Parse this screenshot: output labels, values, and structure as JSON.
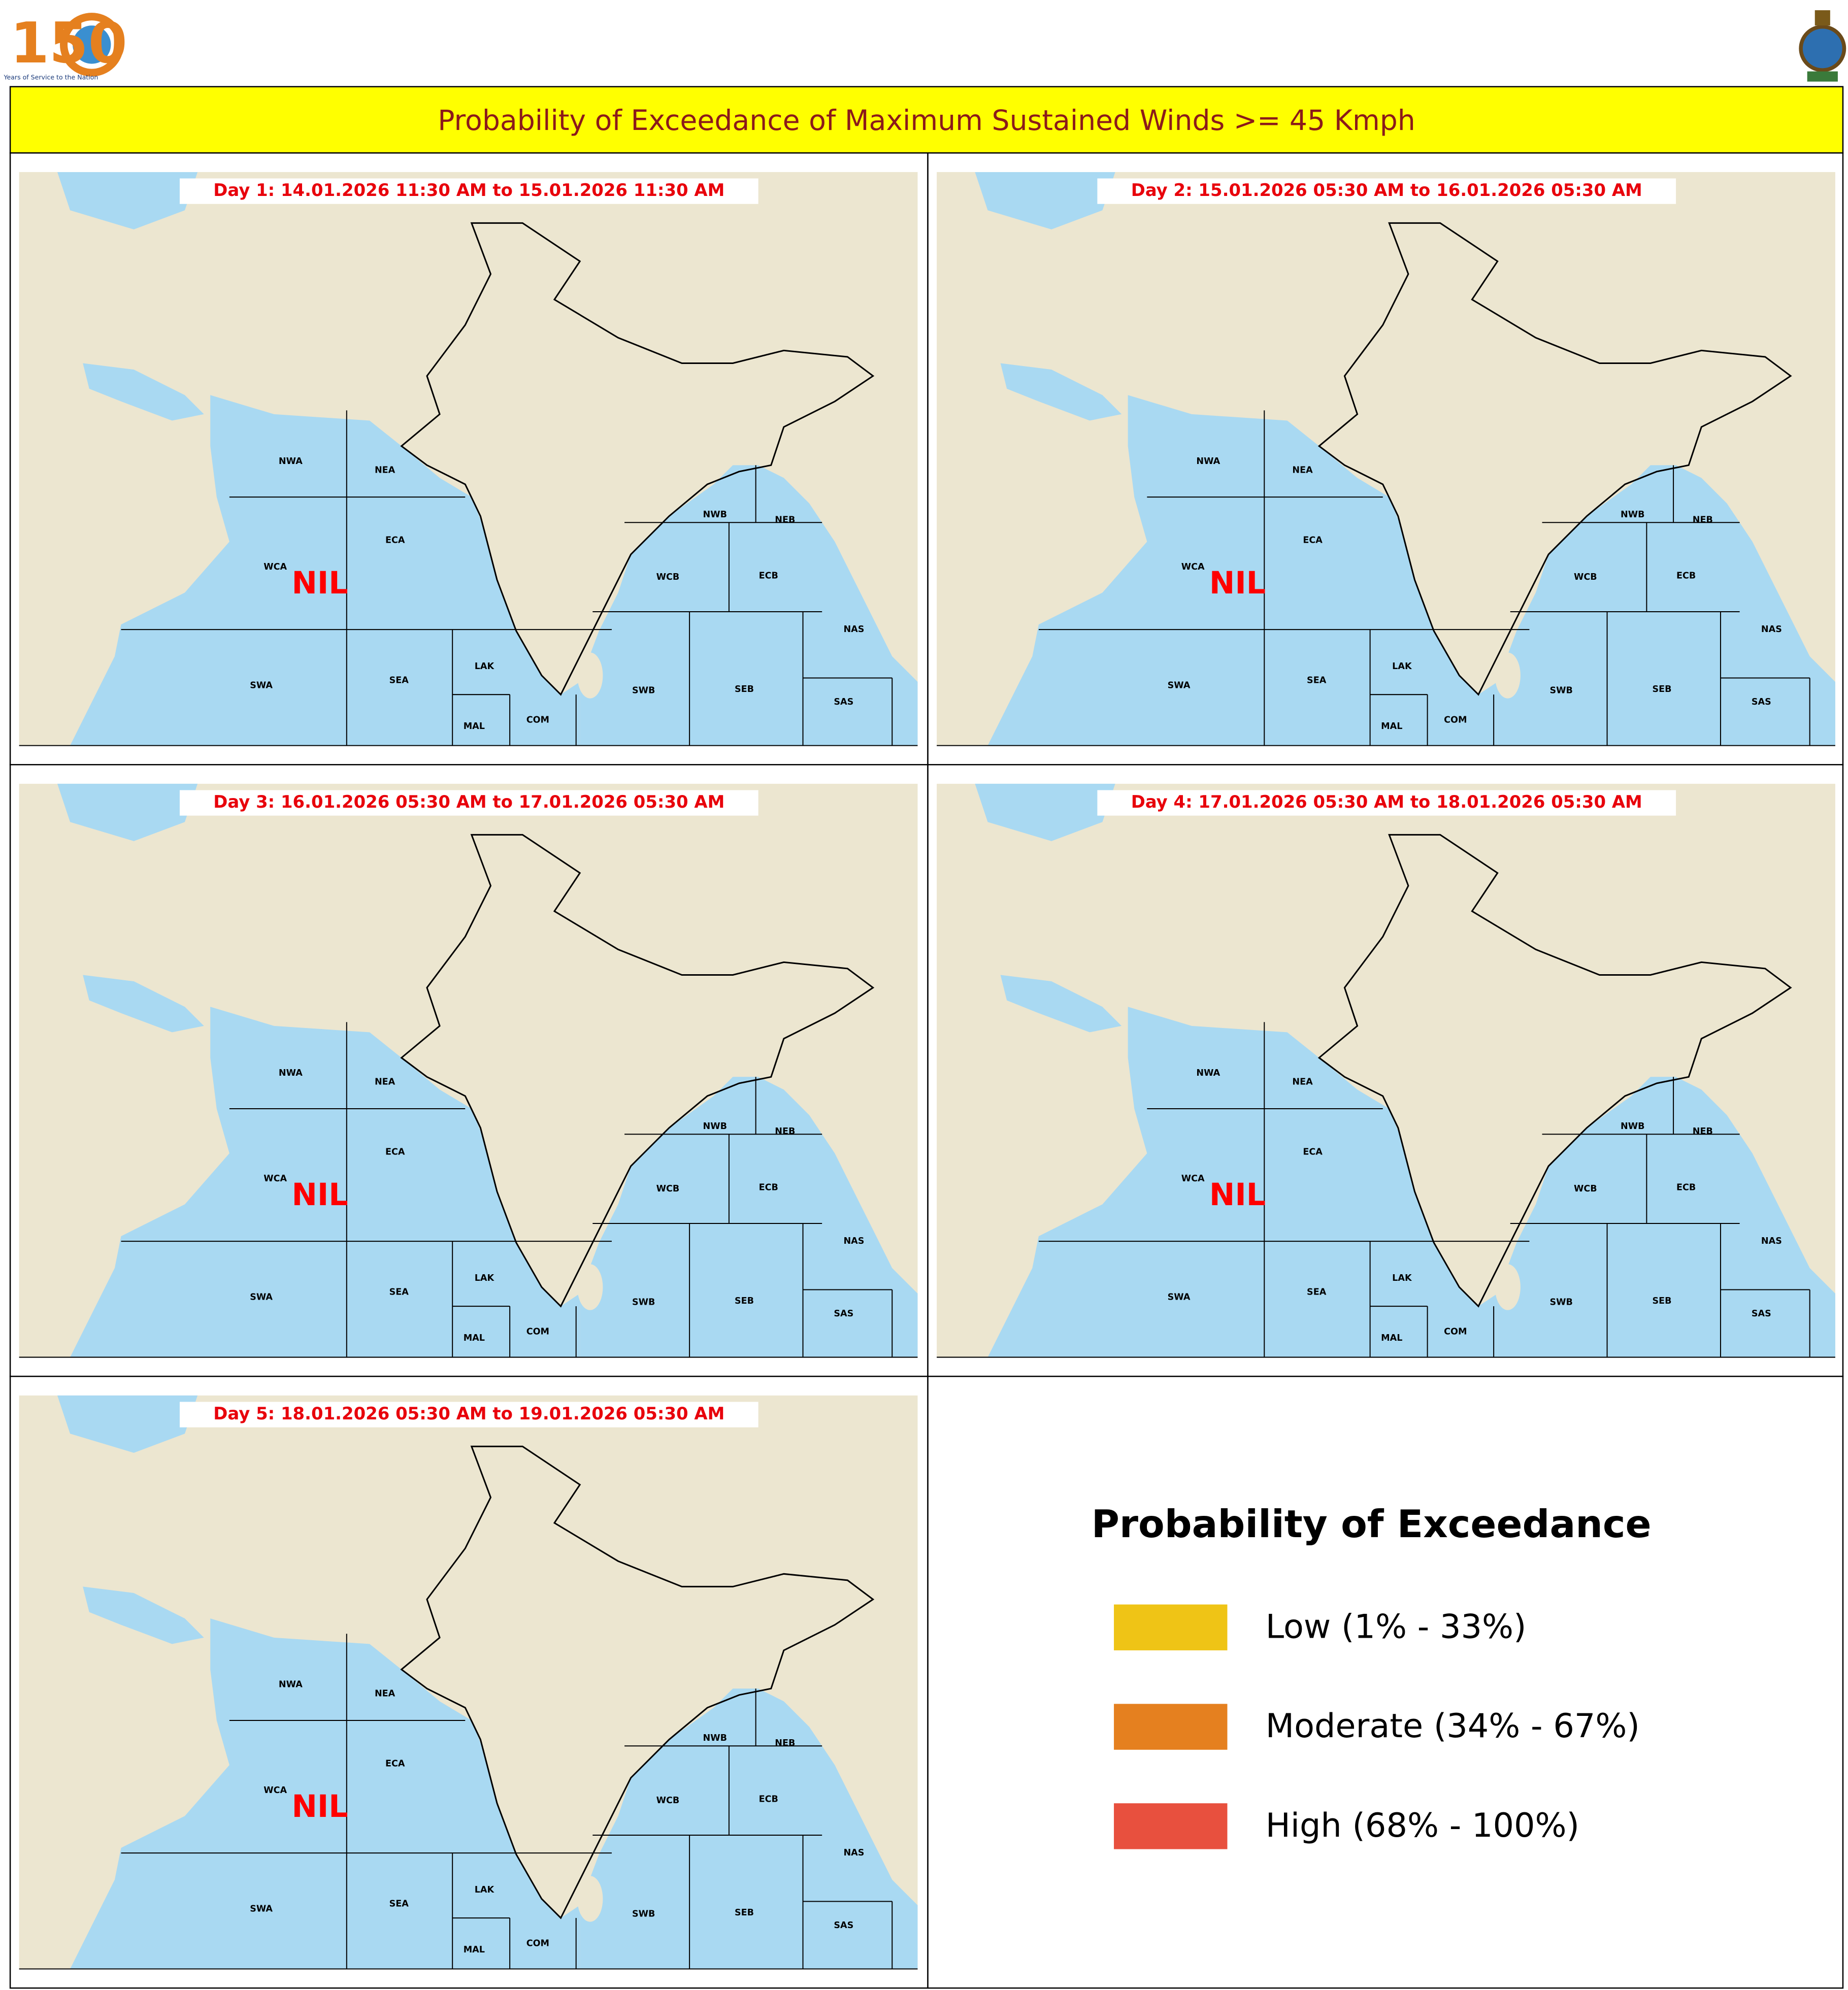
{
  "header": {
    "logo_number": "150",
    "logo_subtitle": "Years of Service to the Nation"
  },
  "title": "Probability of Exceedance of Maximum Sustained Winds >= 45 Kmph",
  "panels": [
    {
      "label": "Day 1: 14.01.2026 11:30 AM to 15.01.2026 11:30 AM",
      "status": "NIL"
    },
    {
      "label": "Day 2: 15.01.2026 05:30 AM to 16.01.2026 05:30 AM",
      "status": "NIL"
    },
    {
      "label": "Day 3: 16.01.2026 05:30 AM to 17.01.2026 05:30 AM",
      "status": "NIL"
    },
    {
      "label": "Day 4: 17.01.2026 05:30 AM to 18.01.2026 05:30 AM",
      "status": "NIL"
    },
    {
      "label": "Day 5: 18.01.2026 05:30 AM to 19.01.2026 05:30 AM",
      "status": "NIL"
    }
  ],
  "regions": [
    "NWA",
    "NEA",
    "ECA",
    "WCA",
    "SWA",
    "SEA",
    "LAK",
    "MAL",
    "COM",
    "NWB",
    "NEB",
    "WCB",
    "ECB",
    "NAS",
    "SAS",
    "SWB",
    "SEB"
  ],
  "legend": {
    "title": "Probability of Exceedance",
    "items": [
      {
        "label": "Low (1% - 33%)",
        "color": "#efc416"
      },
      {
        "label": "Moderate (34% - 67%)",
        "color": "#e5801f"
      },
      {
        "label": "High (68% - 100%)",
        "color": "#e8503e"
      }
    ]
  }
}
